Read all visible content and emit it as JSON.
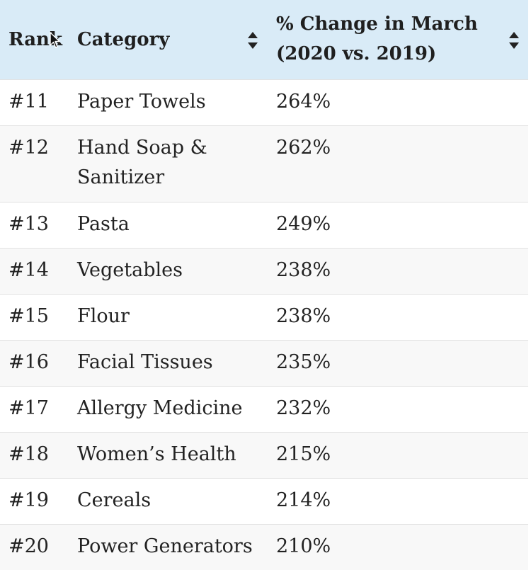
{
  "table": {
    "headers": {
      "rank": "Rank",
      "category": "Category",
      "change_line1": "% Change in March",
      "change_line2": "(2020 vs. 2019)"
    },
    "rows": [
      {
        "rank": "#11",
        "category": [
          "Paper Towels"
        ],
        "change": "264%"
      },
      {
        "rank": "#12",
        "category": [
          "Hand Soap &",
          "Sanitizer"
        ],
        "change": "262%"
      },
      {
        "rank": "#13",
        "category": [
          "Pasta"
        ],
        "change": "249%"
      },
      {
        "rank": "#14",
        "category": [
          "Vegetables"
        ],
        "change": "238%"
      },
      {
        "rank": "#15",
        "category": [
          "Flour"
        ],
        "change": "238%"
      },
      {
        "rank": "#16",
        "category": [
          "Facial Tissues"
        ],
        "change": "235%"
      },
      {
        "rank": "#17",
        "category": [
          "Allergy Medicine"
        ],
        "change": "232%"
      },
      {
        "rank": "#18",
        "category": [
          "Women’s Health"
        ],
        "change": "215%"
      },
      {
        "rank": "#19",
        "category": [
          "Cereals"
        ],
        "change": "214%"
      },
      {
        "rank": "#20",
        "category": [
          "Power Generators"
        ],
        "change": "210%"
      }
    ]
  },
  "icons": {
    "sort": "sort-both-icon",
    "cursor": "mouse-cursor-icon"
  },
  "colors": {
    "header_bg": "#d9ebf7",
    "row_alt_bg": "#f8f8f8",
    "border": "#e2e2e2"
  }
}
